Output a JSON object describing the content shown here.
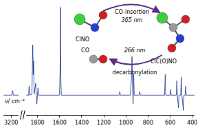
{
  "chart_data": {
    "type": "line",
    "x_label": "ν/ cm⁻¹",
    "color": "#1a2f8c",
    "grid": false,
    "tick_labels": "x",
    "xlim": [
      [
        3250,
        3150
      ],
      [
        1900,
        380
      ]
    ],
    "xticks": [
      [
        3200
      ],
      [
        1800,
        1600,
        1400,
        1200,
        1000,
        800,
        600,
        400
      ]
    ],
    "ylim": [
      -0.2,
      1.05
    ],
    "x": [
      3250,
      3195,
      3190,
      3185,
      3150,
      1900,
      1880,
      1875,
      1870,
      1850,
      1845,
      1842,
      1838,
      1834,
      1830,
      1815,
      1812,
      1805,
      1800,
      1795,
      1790,
      1600,
      1595,
      1592,
      1588,
      1584,
      1060,
      1055,
      1050,
      960,
      950,
      945,
      940,
      935,
      930,
      925,
      880,
      875,
      870,
      650,
      645,
      640,
      600,
      596,
      592,
      545,
      540,
      535,
      525,
      520,
      505,
      500,
      495,
      480,
      475,
      465,
      460,
      455,
      380
    ],
    "values": [
      0.02,
      0.02,
      0.07,
      0.02,
      0.02,
      0.02,
      0.02,
      0.12,
      0.02,
      0.03,
      0.3,
      0.58,
      0.25,
      0.4,
      0.03,
      0.15,
      0.03,
      -0.08,
      0.02,
      0.1,
      0.02,
      0.02,
      0.3,
      1.0,
      0.2,
      0.02,
      0.02,
      0.06,
      0.02,
      0.02,
      0.2,
      0.45,
      0.15,
      -0.08,
      0.25,
      0.02,
      0.02,
      0.06,
      0.02,
      0.02,
      0.25,
      0.02,
      0.02,
      0.08,
      0.02,
      0.02,
      0.18,
      0.02,
      -0.12,
      0.02,
      0.02,
      0.22,
      0.02,
      -0.15,
      0.02,
      0.02,
      0.12,
      0.02,
      0.02
    ]
  },
  "diagram": {
    "molecules": [
      {
        "label": "ClNO"
      },
      {
        "label": "ClC(O)NO"
      },
      {
        "label": "CO"
      }
    ],
    "arrows": [
      {
        "label": "CO-insertion",
        "condition": "365 nm"
      },
      {
        "label": "decarbonylation",
        "condition": "266 nm"
      }
    ]
  }
}
